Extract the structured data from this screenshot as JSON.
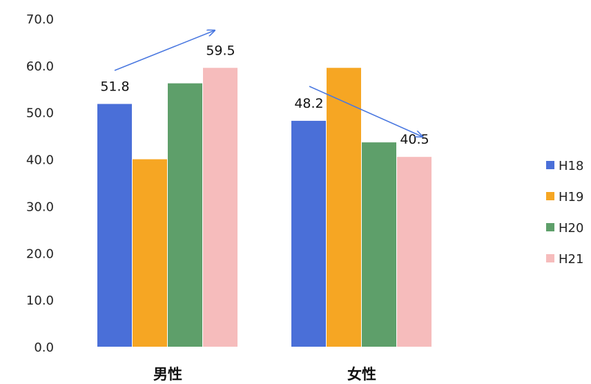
{
  "chart_data": {
    "type": "bar",
    "categories": [
      "男性",
      "女性"
    ],
    "series": [
      {
        "name": "H18",
        "values": [
          51.8,
          48.2
        ],
        "color": "#4a6fd8"
      },
      {
        "name": "H19",
        "values": [
          40.0,
          59.5
        ],
        "color": "#f6a623"
      },
      {
        "name": "H20",
        "values": [
          56.2,
          43.6
        ],
        "color": "#5e9f6a"
      },
      {
        "name": "H21",
        "values": [
          59.5,
          40.5
        ],
        "color": "#f6bcbc"
      }
    ],
    "data_labels": [
      {
        "series": 0,
        "category": 0,
        "text": "51.8"
      },
      {
        "series": 3,
        "category": 0,
        "text": "59.5"
      },
      {
        "series": 0,
        "category": 1,
        "text": "48.2"
      },
      {
        "series": 3,
        "category": 1,
        "text": "40.5"
      }
    ],
    "trend_arrows": [
      {
        "category": 0,
        "from_series": 0,
        "to_series": 3,
        "direction": "up"
      },
      {
        "category": 1,
        "from_series": 0,
        "to_series": 3,
        "direction": "down"
      }
    ],
    "yticks": [
      "0.0",
      "10.0",
      "20.0",
      "30.0",
      "40.0",
      "50.0",
      "60.0",
      "70.0"
    ],
    "ylim": [
      0,
      70
    ],
    "grid": false,
    "legend_position": "right",
    "arrow_color": "#4a78e0"
  }
}
